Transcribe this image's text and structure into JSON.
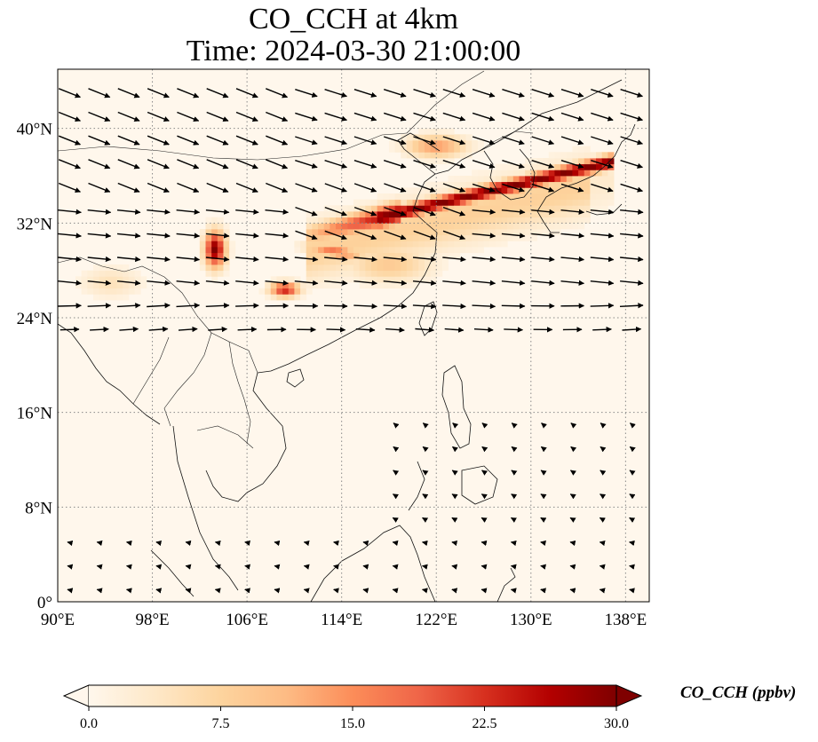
{
  "title": {
    "line1": "CO_CCH at 4km",
    "line2": "Time: 2024-03-30 21:00:00"
  },
  "map": {
    "projection": "PlateCarree",
    "extent": {
      "lon": [
        90,
        140
      ],
      "lat": [
        0,
        45
      ]
    },
    "gridlines": "dotted",
    "coastlines": true,
    "borders": true,
    "lon_ticks": [
      "90°E",
      "98°E",
      "106°E",
      "114°E",
      "122°E",
      "130°E",
      "138°E"
    ],
    "lat_ticks": [
      "0°",
      "8°N",
      "16°N",
      "24°N",
      "32°N",
      "40°N"
    ],
    "field": {
      "variable": "CO_CCH",
      "units": "ppbv",
      "colormap": "OrRd",
      "colors": [
        "#fff7ec",
        "#fee8c8",
        "#fdd49e",
        "#fdbb84",
        "#fc8d59",
        "#ef6548",
        "#d7301f",
        "#b30000",
        "#7f0000"
      ],
      "background_value": 0.8,
      "plumes": [
        {
          "region": "North China Plain to Korea and Japan band",
          "lon": [
            112,
            136
          ],
          "lat": [
            30,
            38
          ],
          "max": 30
        },
        {
          "region": "Sichuan Basin",
          "lon": [
            102.5,
            104.5
          ],
          "lat": [
            28,
            31.5
          ],
          "max": 30
        },
        {
          "region": "South China / Guangxi",
          "lon": [
            107.5,
            111
          ],
          "lat": [
            25.5,
            27.5
          ],
          "max": 26
        },
        {
          "region": "Central China",
          "lon": [
            110.5,
            116
          ],
          "lat": [
            29,
            30.5
          ],
          "max": 22
        },
        {
          "region": "Yellow Sea / Shandong",
          "lon": [
            118,
            126
          ],
          "lat": [
            37,
            40
          ],
          "max": 15
        }
      ]
    },
    "wind_vectors": "black arrows, strong westerlies north of 20°N, weak easterlies in the tropics"
  },
  "colorbar": {
    "label": "CO_CCH (ppbv)",
    "ticks": [
      "0.0",
      "7.5",
      "15.0",
      "22.5",
      "30.0"
    ],
    "range": [
      0,
      30
    ],
    "extend": "both"
  }
}
